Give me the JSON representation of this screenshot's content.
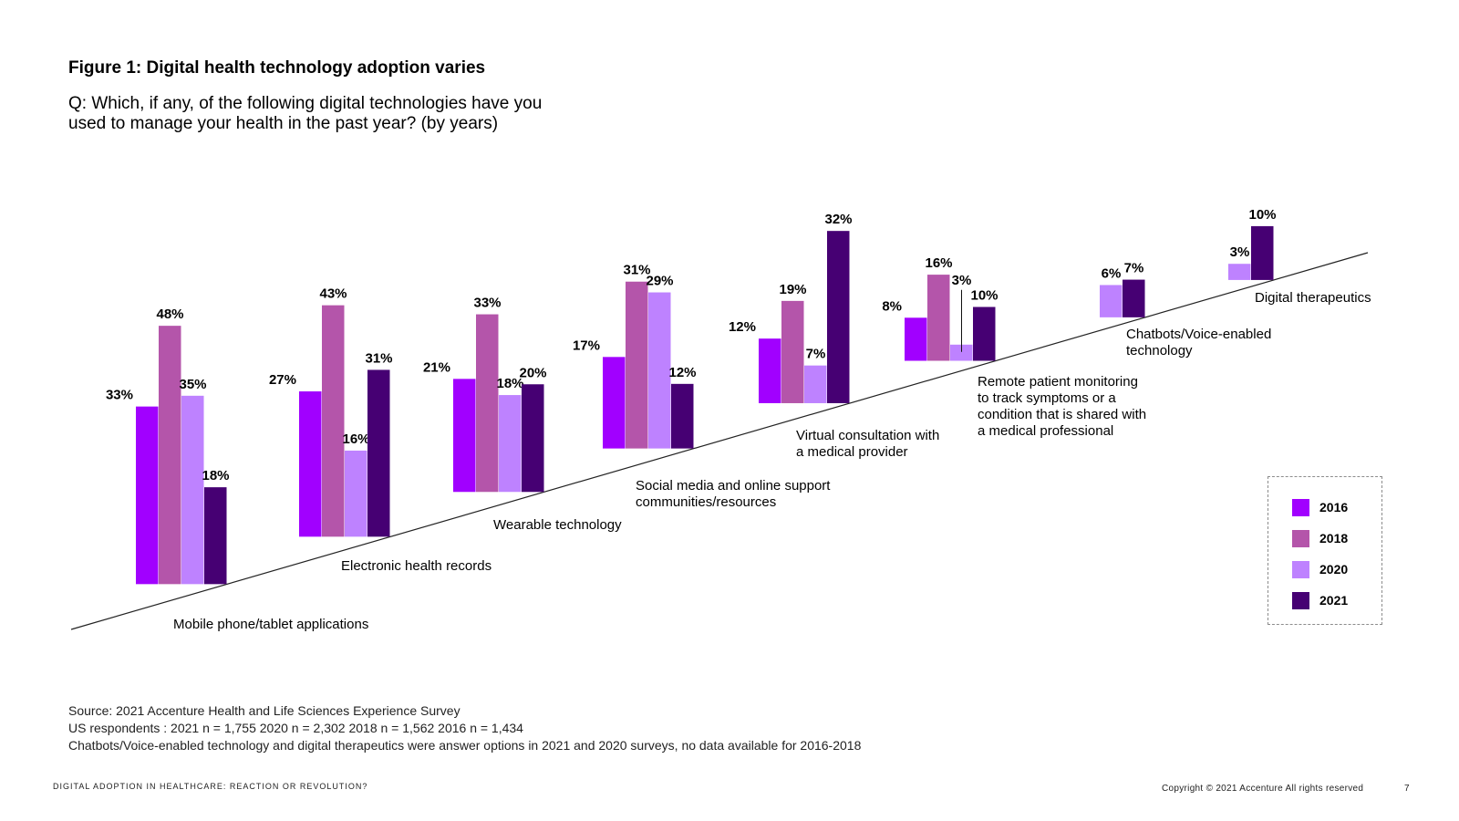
{
  "header": {
    "title": "Figure 1: Digital health technology adoption varies",
    "subtitle_line1": "Q: Which, if any, of the following digital technologies have you",
    "subtitle_line2": "used to manage your health in the past year? (by years)"
  },
  "chart_data": {
    "type": "bar",
    "title": "Figure 1: Digital health technology adoption varies",
    "subtitle": "Q: Which, if any, of the following digital technologies have you used to manage your health in the past year? (by years)",
    "categories": [
      "Mobile phone/tablet applications",
      "Electronic health records",
      "Wearable technology",
      "Social media and online support communities/resources",
      "Virtual consultation with a medical provider",
      "Remote patient monitoring to track symptoms or a condition that is shared with a medical professional",
      "Chatbots/Voice-enabled technology",
      "Digital therapeutics"
    ],
    "category_label_lines": [
      [
        "Mobile phone/tablet applications"
      ],
      [
        "Electronic health records"
      ],
      [
        "Wearable technology"
      ],
      [
        "Social media and online support",
        "communities/resources"
      ],
      [
        "Virtual consultation with",
        "a medical provider"
      ],
      [
        "Remote patient monitoring",
        "to track symptoms or a",
        "condition that is shared with",
        "a medical professional"
      ],
      [
        "Chatbots/Voice-enabled",
        "technology"
      ],
      [
        "Digital therapeutics"
      ]
    ],
    "series": [
      {
        "name": "2016",
        "color": "#a100ff",
        "values": [
          33,
          27,
          21,
          17,
          12,
          8,
          null,
          null
        ]
      },
      {
        "name": "2018",
        "color": "#b455aa",
        "values": [
          48,
          43,
          33,
          31,
          19,
          16,
          null,
          null
        ]
      },
      {
        "name": "2020",
        "color": "#be82ff",
        "values": [
          35,
          16,
          18,
          29,
          7,
          3,
          6,
          3
        ]
      },
      {
        "name": "2021",
        "color": "#460073",
        "values": [
          18,
          31,
          20,
          12,
          32,
          10,
          7,
          10
        ]
      }
    ],
    "unit": "%",
    "legend_position": "bottom-right",
    "grid": false
  },
  "legend": {
    "items": [
      {
        "label": "2016",
        "color": "#a100ff"
      },
      {
        "label": "2018",
        "color": "#b455aa"
      },
      {
        "label": "2020",
        "color": "#be82ff"
      },
      {
        "label": "2021",
        "color": "#460073"
      }
    ]
  },
  "notes": {
    "source": "Source: 2021 Accenture Health and Life Sciences Experience Survey",
    "respondents": "US respondents : 2021 n = 1,755 2020 n = 2,302 2018 n = 1,562 2016 n = 1,434",
    "availability": "Chatbots/Voice-enabled technology and digital therapeutics were answer options in 2021 and 2020 surveys, no data available for 2016-2018"
  },
  "footer": {
    "report_title": "DIGITAL ADOPTION IN HEALTHCARE: REACTION OR REVOLUTION?",
    "copyright": "Copyright © 2021 Accenture All rights reserved",
    "page_number": "7"
  }
}
